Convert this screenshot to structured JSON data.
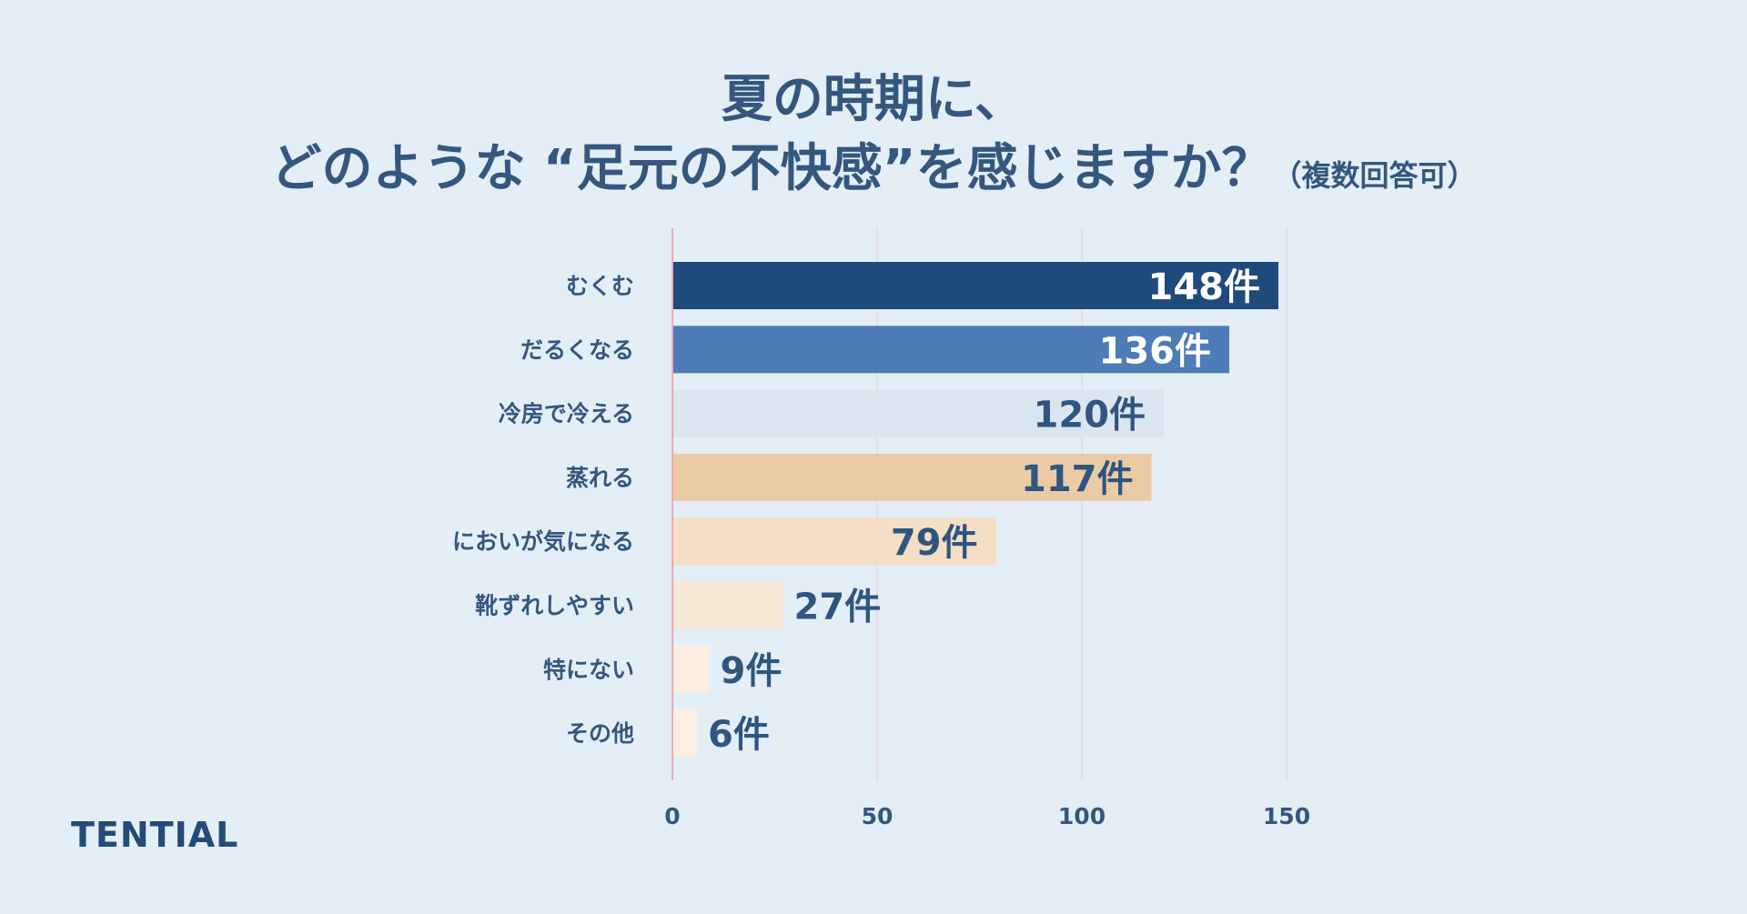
{
  "header": {
    "title_line1": "夏の時期に、",
    "title_line2": "どのような “足元の不快感”を感じますか？",
    "title_suffix": "（複数回答可）"
  },
  "brand": {
    "logo_text": "TENTIAL"
  },
  "chart_data": {
    "type": "bar",
    "orientation": "horizontal",
    "categories": [
      "むくむ",
      "だるくなる",
      "冷房で冷える",
      "蒸れる",
      "においが気になる",
      "靴ずれしやすい",
      "特にない",
      "その他"
    ],
    "values": [
      148,
      136,
      120,
      117,
      79,
      27,
      9,
      6
    ],
    "value_labels": [
      "148件",
      "136件",
      "120件",
      "117件",
      "79件",
      "27件",
      "9件",
      "6件"
    ],
    "bar_colors": [
      "#1f4a7c",
      "#4d7cb6",
      "#dbe5f0",
      "#ebcba6",
      "#f4dec4",
      "#f8e8d6",
      "#faeee2",
      "#fbefe4"
    ],
    "label_colors": [
      "#ffffff",
      "#ffffff",
      "#2f5680",
      "#2f5680",
      "#2f5680",
      "#2f5680",
      "#2f5680",
      "#2f5680"
    ],
    "xlim": [
      0,
      150
    ],
    "xticks": [
      0,
      50,
      100,
      150
    ],
    "grid": true,
    "zero_line_color": "#f0a6b3",
    "grid_color": "#e8dde6"
  }
}
